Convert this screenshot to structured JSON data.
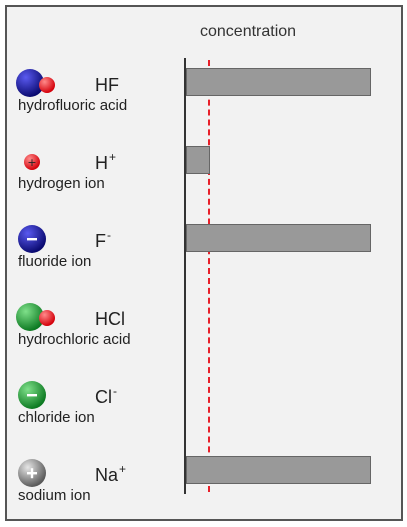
{
  "header": {
    "concentration_label": "concentration"
  },
  "species": [
    {
      "formula": "HF",
      "charge": "",
      "name": "hydrofluoric acid",
      "icon": "hydrofluoric-acid-molecule-icon",
      "bar_fraction": 1.0
    },
    {
      "formula": "H",
      "charge": "+",
      "name": "hydrogen ion",
      "icon": "hydrogen-ion-icon",
      "bar_fraction": 0.13
    },
    {
      "formula": "F",
      "charge": "-",
      "name": "fluoride ion",
      "icon": "fluoride-ion-icon",
      "bar_fraction": 1.0
    },
    {
      "formula": "HCl",
      "charge": "",
      "name": "hydrochloric acid",
      "icon": "hydrochloric-acid-molecule-icon",
      "bar_fraction": 0
    },
    {
      "formula": "Cl",
      "charge": "-",
      "name": "chloride ion",
      "icon": "chloride-ion-icon",
      "bar_fraction": 0
    },
    {
      "formula": "Na",
      "charge": "+",
      "name": "sodium ion",
      "icon": "sodium-ion-icon",
      "bar_fraction": 1.0
    }
  ],
  "colors": {
    "fluorine": "#1a1a9e",
    "chlorine": "#1fae3a",
    "hydrogen": "#ee1c24",
    "sodium": "#9a9a9a",
    "bar": "#999999",
    "reference_line": "#e8202a"
  }
}
